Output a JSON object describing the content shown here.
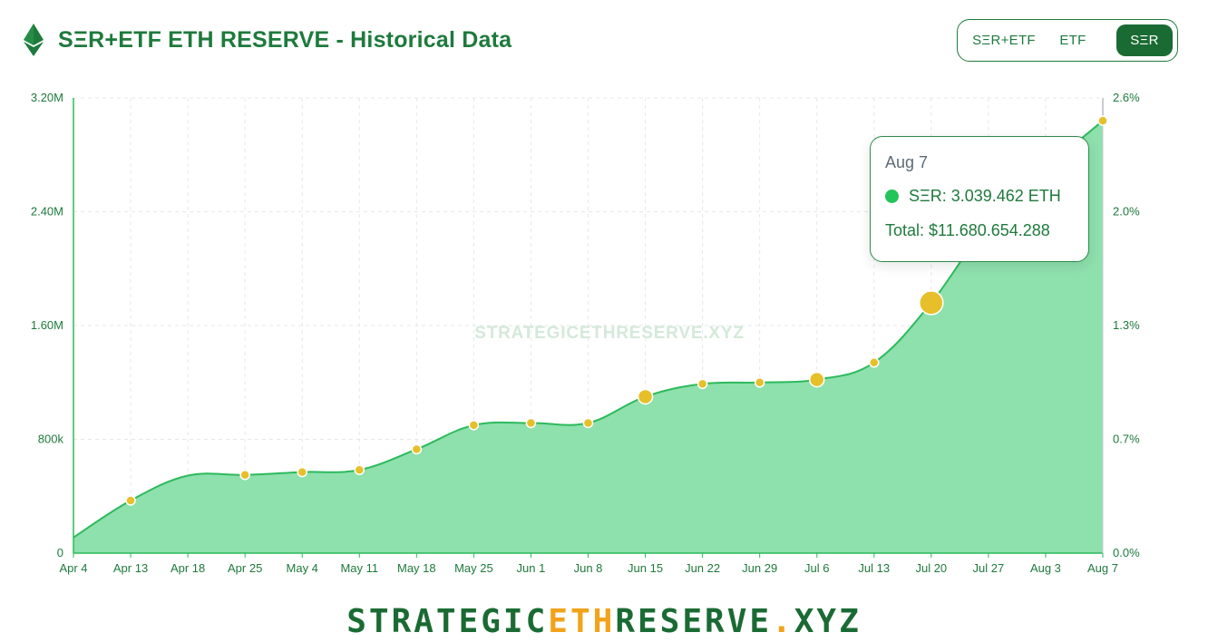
{
  "header": {
    "title": "SΞR+ETF ETH RESERVE - Historical Data",
    "logo_icon": "ethereum-icon"
  },
  "toggle": {
    "options": [
      "SΞR+ETF",
      "ETF",
      "SΞR"
    ],
    "selected": "SΞR"
  },
  "watermark": "STRATEGICETHRESERVE.XYZ",
  "tooltip": {
    "date": "Aug 7",
    "series_line": "SΞR: 3.039.462 ETH",
    "total_line": "Total: $11.680.654.288"
  },
  "footer": {
    "part1": "STRATEGIC",
    "part2": "ETH",
    "part3": "RESERVE",
    "part4": ".",
    "part5": "XYZ"
  },
  "colors": {
    "primary": "#1e7a3c",
    "area_fill": "#8ee0ad",
    "area_line": "#2cba5c",
    "marker": "#e6bf2a",
    "accent_orange": "#f2a31b"
  },
  "chart_data": {
    "type": "area",
    "x_ticks": [
      "Apr 4",
      "Apr 13",
      "Apr 18",
      "Apr 25",
      "May 4",
      "May 11",
      "May 18",
      "May 25",
      "Jun 1",
      "Jun 8",
      "Jun 15",
      "Jun 22",
      "Jun 29",
      "Jul 6",
      "Jul 13",
      "Jul 20",
      "Jul 27",
      "Aug 3",
      "Aug 7"
    ],
    "y_ticks": [
      "0",
      "800k",
      "1.60M",
      "2.40M",
      "3.20M"
    ],
    "y_range": [
      0,
      3200000
    ],
    "y2_ticks": [
      "0.0%",
      "0.7%",
      "1.3%",
      "2.0%",
      "2.6%"
    ],
    "y2_range": [
      0,
      2.6
    ],
    "grid": true,
    "series": [
      {
        "name": "SΞR",
        "x": [
          "Apr 4",
          "Apr 13",
          "Apr 18",
          "Apr 25",
          "May 4",
          "May 11",
          "May 18",
          "May 25",
          "Jun 1",
          "Jun 8",
          "Jun 15",
          "Jun 22",
          "Jun 29",
          "Jul 6",
          "Jul 13",
          "Jul 20",
          "Jul 27",
          "Aug 3",
          "Aug 7"
        ],
        "values": [
          110000,
          370000,
          545000,
          550000,
          570000,
          585000,
          730000,
          900000,
          915000,
          915000,
          1100000,
          1190000,
          1200000,
          1220000,
          1340000,
          1760000,
          2320000,
          2700000,
          3039462
        ]
      }
    ],
    "markers": [
      {
        "x": "Apr 13",
        "value": 370000,
        "size": "small"
      },
      {
        "x": "Apr 25",
        "value": 550000,
        "size": "small"
      },
      {
        "x": "May 4",
        "value": 570000,
        "size": "small"
      },
      {
        "x": "May 11",
        "value": 585000,
        "size": "small"
      },
      {
        "x": "May 18",
        "value": 730000,
        "size": "small"
      },
      {
        "x": "May 25",
        "value": 900000,
        "size": "small"
      },
      {
        "x": "Jun 1",
        "value": 915000,
        "size": "small"
      },
      {
        "x": "Jun 8",
        "value": 915000,
        "size": "small"
      },
      {
        "x": "Jun 15",
        "value": 1100000,
        "size": "medium"
      },
      {
        "x": "Jun 22",
        "value": 1190000,
        "size": "small"
      },
      {
        "x": "Jun 29",
        "value": 1200000,
        "size": "small"
      },
      {
        "x": "Jul 6",
        "value": 1220000,
        "size": "medium"
      },
      {
        "x": "Jul 13",
        "value": 1340000,
        "size": "small"
      },
      {
        "x": "Jul 20",
        "value": 1760000,
        "size": "large"
      },
      {
        "x": "Aug 7",
        "value": 3039462,
        "size": "small"
      }
    ]
  }
}
